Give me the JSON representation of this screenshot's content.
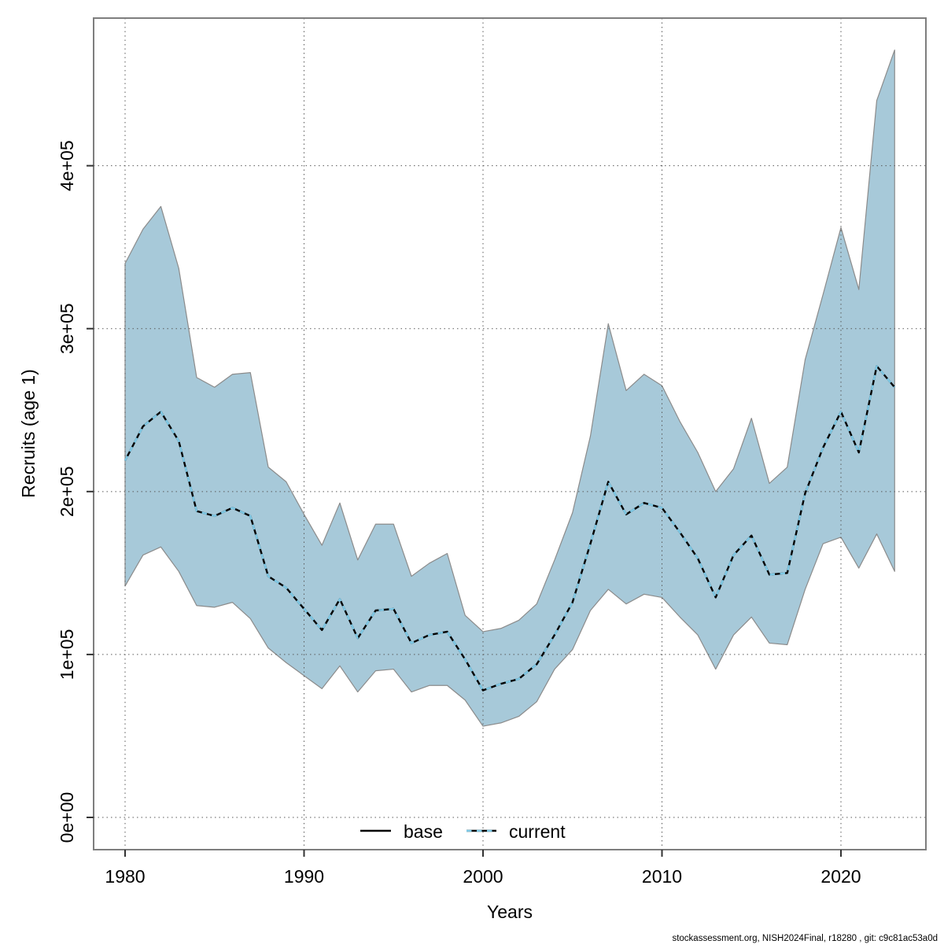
{
  "figure": {
    "xlabel": "Years",
    "ylabel": "Recruits (age 1)",
    "footer": "stockassessment.org, NISH2024Final, r18280 , git: c9c81ac53a0d"
  },
  "legend": {
    "items": [
      {
        "label": "base",
        "style": "solid",
        "color": "#000000"
      },
      {
        "label": "current",
        "style": "dashed",
        "color": "#7ec9e6"
      }
    ]
  },
  "colors": {
    "band_fill": "#a7c9d9",
    "band_outline": "#8b8b8b",
    "base_line": "#000000",
    "current_line": "#7ec9e6",
    "grid": "#5a5a5a",
    "plot_border": "#7e7e7e",
    "tick": "#333333",
    "text": "#000000"
  },
  "chart_data": {
    "type": "line",
    "title": "",
    "xlabel": "Years",
    "ylabel": "Recruits (age 1)",
    "grid": true,
    "legend_position": "bottom-center",
    "xlim": [
      1978,
      2025
    ],
    "ylim": [
      -20000,
      491000
    ],
    "xticks": [
      1980,
      1990,
      2000,
      2010,
      2020
    ],
    "yticks": {
      "values": [
        0,
        100000,
        200000,
        300000,
        400000
      ],
      "labels": [
        "0e+00",
        "1e+05",
        "2e+05",
        "3e+05",
        "4e+05"
      ]
    },
    "x": [
      1980,
      1981,
      1982,
      1983,
      1984,
      1985,
      1986,
      1987,
      1988,
      1989,
      1990,
      1991,
      1992,
      1993,
      1994,
      1995,
      1996,
      1997,
      1998,
      1999,
      2000,
      2001,
      2002,
      2003,
      2004,
      2005,
      2006,
      2007,
      2008,
      2009,
      2010,
      2011,
      2012,
      2013,
      2014,
      2015,
      2016,
      2017,
      2018,
      2019,
      2020,
      2021,
      2022,
      2023
    ],
    "series": [
      {
        "name": "base",
        "style": "solid",
        "color": "#000000",
        "values": [
          219000,
          240000,
          249000,
          231000,
          188000,
          185000,
          190000,
          185000,
          148000,
          141000,
          128000,
          115000,
          134000,
          110000,
          127000,
          128000,
          107000,
          112000,
          114000,
          97000,
          78000,
          82000,
          85000,
          94000,
          112000,
          132000,
          168000,
          206000,
          186000,
          193000,
          190000,
          175000,
          159000,
          135000,
          161000,
          173000,
          149000,
          150000,
          199000,
          227000,
          249000,
          224000,
          277000,
          264000
        ]
      },
      {
        "name": "current",
        "style": "dashed",
        "color": "#7ec9e6",
        "values": [
          219000,
          240000,
          249000,
          231000,
          188000,
          185000,
          190000,
          185000,
          148000,
          141000,
          128000,
          115000,
          134000,
          110000,
          127000,
          128000,
          107000,
          112000,
          114000,
          97000,
          78000,
          82000,
          85000,
          94000,
          112000,
          132000,
          168000,
          206000,
          186000,
          193000,
          190000,
          175000,
          159000,
          135000,
          161000,
          173000,
          149000,
          150000,
          199000,
          227000,
          249000,
          224000,
          277000,
          264000
        ]
      }
    ],
    "band": {
      "name": "confidence-interval",
      "fill": "#a7c9d9",
      "upper": [
        340000,
        361000,
        375000,
        337000,
        270000,
        264000,
        272000,
        273000,
        215000,
        206000,
        186000,
        167000,
        193000,
        158000,
        180000,
        180000,
        148000,
        156000,
        162000,
        124000,
        114000,
        116000,
        121000,
        131000,
        158000,
        187000,
        234000,
        303000,
        262000,
        272000,
        265000,
        243000,
        224000,
        200000,
        214000,
        245000,
        205000,
        215000,
        281000,
        321000,
        362000,
        324000,
        440000,
        471000
      ],
      "lower": [
        142000,
        161000,
        166000,
        151000,
        130000,
        129000,
        132000,
        122000,
        104000,
        95000,
        87000,
        79000,
        93000,
        77000,
        90000,
        91000,
        77000,
        81000,
        81000,
        72000,
        56000,
        58000,
        62000,
        71000,
        91000,
        103000,
        127000,
        140000,
        131000,
        137000,
        135000,
        123000,
        112000,
        91000,
        112000,
        123000,
        107000,
        106000,
        140000,
        168000,
        172000,
        153000,
        174000,
        151000
      ]
    }
  }
}
